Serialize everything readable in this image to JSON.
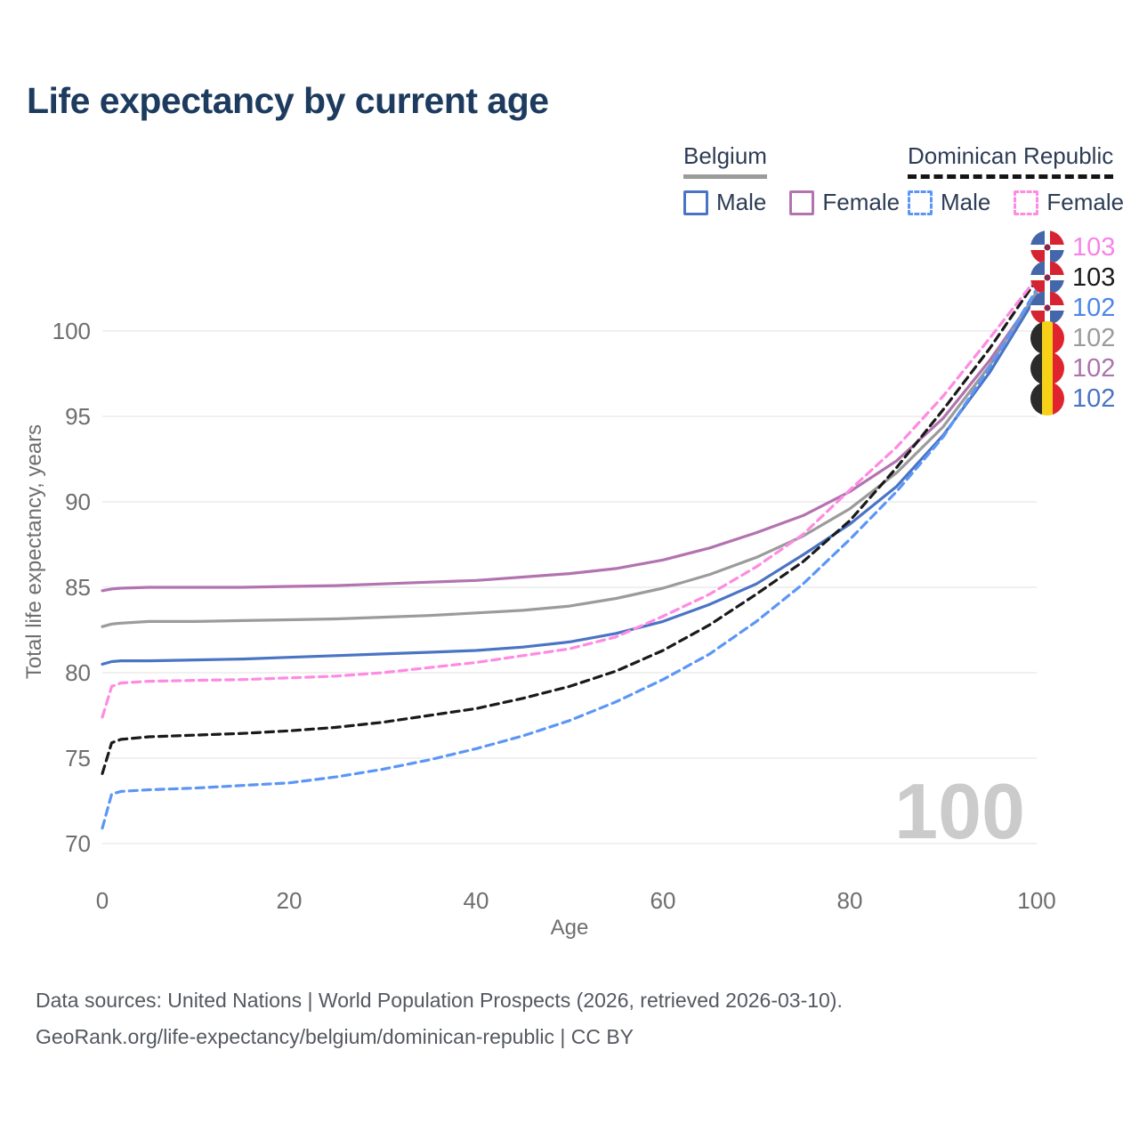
{
  "title": "Life expectancy by current age",
  "legend": {
    "groups": [
      {
        "country": "Belgium",
        "line_style": "solid",
        "underline_color": "#9b9b9b",
        "items": [
          {
            "label": "Male",
            "color": "#4a74c4",
            "dashed": false
          },
          {
            "label": "Female",
            "color": "#b273af",
            "dashed": false
          }
        ]
      },
      {
        "country": "Dominican Republic",
        "line_style": "dashed",
        "underline_color": "#141414",
        "items": [
          {
            "label": "Male",
            "color": "#5b96f7",
            "dashed": true
          },
          {
            "label": "Female",
            "color": "#ff8ae2",
            "dashed": true
          }
        ]
      }
    ]
  },
  "watermark": "100",
  "chart_data": {
    "type": "line",
    "title": "Life expectancy by current age",
    "xlabel": "Age",
    "ylabel": "Total life expectancy, years",
    "xlim": [
      0,
      100
    ],
    "ylim": [
      70,
      100
    ],
    "xticks": [
      0,
      20,
      40,
      60,
      80,
      100
    ],
    "yticks": [
      70,
      75,
      80,
      85,
      90,
      95,
      100
    ],
    "grid": true,
    "legend_position": "top-right",
    "x": [
      0,
      1,
      2,
      5,
      10,
      15,
      20,
      25,
      30,
      35,
      40,
      45,
      50,
      55,
      60,
      65,
      70,
      75,
      80,
      85,
      90,
      95,
      100
    ],
    "series": [
      {
        "name": "Belgium Female",
        "color": "#b273af",
        "dash": "solid",
        "values": [
          84.8,
          84.9,
          84.95,
          85.0,
          85.0,
          85.0,
          85.05,
          85.1,
          85.2,
          85.3,
          85.4,
          85.6,
          85.8,
          86.1,
          86.6,
          87.3,
          88.2,
          89.2,
          90.6,
          92.4,
          94.9,
          98.3,
          102.2
        ]
      },
      {
        "name": "Belgium Both sexes",
        "color": "#9b9b9b",
        "dash": "solid",
        "values": [
          82.7,
          82.85,
          82.9,
          83.0,
          83.0,
          83.05,
          83.1,
          83.15,
          83.25,
          83.35,
          83.5,
          83.65,
          83.9,
          84.35,
          84.95,
          85.75,
          86.75,
          88.0,
          89.6,
          91.7,
          94.4,
          98.0,
          102.3
        ]
      },
      {
        "name": "Belgium Male",
        "color": "#4a74c4",
        "dash": "solid",
        "values": [
          80.5,
          80.65,
          80.7,
          80.7,
          80.75,
          80.8,
          80.9,
          81.0,
          81.1,
          81.2,
          81.3,
          81.5,
          81.8,
          82.3,
          83.0,
          84.0,
          85.2,
          86.9,
          88.7,
          90.9,
          93.9,
          97.6,
          102.05
        ]
      },
      {
        "name": "Dominican Republic Both sexes",
        "color": "#1a1a1a",
        "dash": "dashed",
        "values": [
          74.1,
          75.9,
          76.1,
          76.25,
          76.35,
          76.45,
          76.6,
          76.8,
          77.1,
          77.5,
          77.9,
          78.5,
          79.2,
          80.1,
          81.3,
          82.8,
          84.6,
          86.5,
          88.9,
          92.0,
          95.4,
          99.0,
          103.0
        ]
      },
      {
        "name": "Dominican Republic Male",
        "color": "#5b96f7",
        "dash": "dashed",
        "values": [
          70.9,
          72.9,
          73.05,
          73.15,
          73.25,
          73.4,
          73.55,
          73.9,
          74.35,
          74.9,
          75.55,
          76.3,
          77.2,
          78.3,
          79.6,
          81.1,
          83.0,
          85.2,
          87.8,
          90.6,
          93.8,
          97.9,
          102.45
        ]
      },
      {
        "name": "Dominican Republic Female",
        "color": "#ff8ae2",
        "dash": "dashed",
        "values": [
          77.4,
          79.2,
          79.4,
          79.5,
          79.55,
          79.6,
          79.7,
          79.8,
          80.0,
          80.3,
          80.6,
          81.0,
          81.4,
          82.1,
          83.3,
          84.6,
          86.2,
          88.1,
          90.7,
          93.2,
          96.2,
          99.6,
          103.1
        ]
      }
    ],
    "end_labels": [
      {
        "text": "103",
        "flag": "do",
        "color": "#f783e8",
        "series_index": 5
      },
      {
        "text": "103",
        "flag": "do",
        "color": "#1a1a1a",
        "series_index": 3
      },
      {
        "text": "102",
        "flag": "do",
        "color": "#4d86e8",
        "series_index": 4
      },
      {
        "text": "102",
        "flag": "be",
        "color": "#9b9b9b",
        "series_index": 1
      },
      {
        "text": "102",
        "flag": "be",
        "color": "#ab74ab",
        "series_index": 0
      },
      {
        "text": "102",
        "flag": "be",
        "color": "#4a74c4",
        "series_index": 2
      }
    ]
  },
  "footer": {
    "line1": "Data sources: United Nations | World Population Prospects (2026, retrieved 2026-03-10).",
    "line2": "GeoRank.org/life-expectancy/belgium/dominican-republic | CC BY"
  }
}
